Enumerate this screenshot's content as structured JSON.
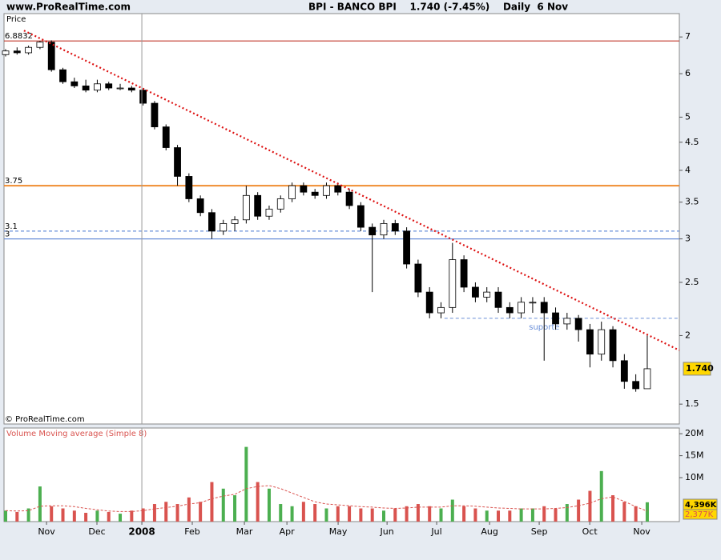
{
  "header": {
    "site": "www.ProRealTime.com",
    "title": "BPI - BANCO BPI    1.740 (-7.45%)    Daily  6 Nov"
  },
  "chart_data": [
    {
      "type": "candlestick",
      "axis_label": "Price",
      "copyright": "© ProRealTime.com",
      "log": true,
      "ylim": [
        1.38,
        7.72
      ],
      "yticks": [
        7,
        6,
        5,
        4.5,
        4,
        3.5,
        3,
        2.5,
        2,
        1.5
      ],
      "xlim": [
        -0.14,
        58.8
      ],
      "x": [
        0,
        1,
        2,
        3,
        4,
        5,
        6,
        7,
        8,
        9,
        10,
        11,
        12,
        13,
        14,
        15,
        16,
        17,
        18,
        19,
        20,
        21,
        22,
        23,
        24,
        25,
        26,
        27,
        28,
        29,
        30,
        31,
        32,
        33,
        34,
        35,
        36,
        37,
        38,
        39,
        40,
        41,
        42,
        43,
        44,
        45,
        46,
        47,
        48,
        49,
        50,
        51,
        52,
        53,
        54,
        55,
        56
      ],
      "open": [
        6.5,
        6.6,
        6.55,
        6.7,
        6.85,
        6.1,
        5.8,
        5.7,
        5.6,
        5.75,
        5.65,
        5.65,
        5.6,
        5.3,
        4.8,
        4.4,
        3.9,
        3.55,
        3.35,
        3.1,
        3.2,
        3.25,
        3.6,
        3.3,
        3.4,
        3.55,
        3.75,
        3.65,
        3.6,
        3.75,
        3.65,
        3.45,
        3.15,
        3.05,
        3.2,
        3.1,
        2.7,
        2.4,
        2.2,
        2.25,
        2.75,
        2.45,
        2.35,
        2.4,
        2.25,
        2.2,
        2.3,
        2.3,
        2.2,
        2.1,
        2.15,
        2.05,
        1.85,
        2.05,
        1.8,
        1.65,
        1.6
      ],
      "high": [
        6.65,
        6.7,
        6.75,
        6.88,
        6.9,
        6.15,
        5.9,
        5.85,
        5.85,
        5.8,
        5.75,
        5.7,
        5.65,
        5.35,
        4.85,
        4.45,
        3.95,
        3.6,
        3.4,
        3.25,
        3.3,
        3.75,
        3.65,
        3.45,
        3.6,
        3.8,
        3.8,
        3.7,
        3.8,
        3.8,
        3.7,
        3.5,
        3.2,
        3.25,
        3.25,
        3.15,
        2.75,
        2.45,
        2.3,
        2.95,
        2.8,
        2.5,
        2.45,
        2.45,
        2.3,
        2.35,
        2.35,
        2.35,
        2.25,
        2.2,
        2.18,
        2.1,
        2.12,
        2.08,
        1.85,
        1.7,
        2.0
      ],
      "low": [
        6.45,
        6.5,
        6.5,
        6.65,
        6.05,
        5.75,
        5.65,
        5.55,
        5.55,
        5.6,
        5.6,
        5.55,
        5.25,
        4.75,
        4.35,
        3.75,
        3.5,
        3.3,
        3.0,
        3.05,
        3.1,
        3.2,
        3.25,
        3.25,
        3.35,
        3.5,
        3.6,
        3.55,
        3.55,
        3.6,
        3.4,
        3.1,
        2.4,
        3.0,
        3.05,
        2.65,
        2.35,
        2.15,
        2.15,
        2.2,
        2.4,
        2.3,
        2.3,
        2.2,
        2.15,
        2.15,
        2.2,
        1.8,
        2.05,
        2.05,
        1.95,
        1.75,
        1.8,
        1.75,
        1.6,
        1.58,
        1.6
      ],
      "close": [
        6.6,
        6.55,
        6.7,
        6.85,
        6.1,
        5.8,
        5.7,
        5.6,
        5.75,
        5.65,
        5.65,
        5.6,
        5.3,
        4.8,
        4.4,
        3.9,
        3.55,
        3.35,
        3.1,
        3.2,
        3.25,
        3.6,
        3.3,
        3.4,
        3.55,
        3.75,
        3.65,
        3.6,
        3.75,
        3.65,
        3.45,
        3.15,
        3.05,
        3.2,
        3.1,
        2.7,
        2.4,
        2.2,
        2.25,
        2.75,
        2.45,
        2.35,
        2.4,
        2.25,
        2.2,
        2.3,
        2.3,
        2.2,
        2.1,
        2.15,
        2.05,
        1.85,
        2.05,
        1.8,
        1.65,
        1.6,
        1.74
      ],
      "up_color": "#ffffff",
      "down_color": "#000000",
      "last_price": {
        "value": 1.74,
        "label": "1.740"
      },
      "hlines": [
        {
          "value": 6.8832,
          "label": "6.8832",
          "color": "#c0392b",
          "dashed": false
        },
        {
          "value": 3.75,
          "label": "3.75",
          "color": "#f08c30",
          "dashed": false
        },
        {
          "value": 3.1,
          "label": "3.1",
          "color": "#6a8fd8",
          "dashed": true
        },
        {
          "value": 3,
          "label": "3",
          "color": "#6a8fd8",
          "dashed": false
        }
      ],
      "support": {
        "label": "suporte",
        "value": 2.15,
        "x": [
          38.3,
          58.8
        ],
        "color": "#6a8fd8"
      },
      "trendline": {
        "x": [
          1.6,
          58.8
        ],
        "y": [
          7.19,
          1.88
        ],
        "color": "#dd1111"
      }
    },
    {
      "type": "volume",
      "title": "Volume Moving average (Simple 8)",
      "ylim": [
        0,
        21.3
      ],
      "yticks": [
        {
          "value": 20,
          "label": "20M"
        },
        {
          "value": 15,
          "label": "15M"
        },
        {
          "value": 10,
          "label": "10M"
        }
      ],
      "xlim": [
        -0.14,
        58.8
      ],
      "xticks": [
        {
          "value": 3.57,
          "label": "Nov"
        },
        {
          "value": 7.97,
          "label": "Dec"
        },
        {
          "value": 11.89,
          "label": "2008"
        },
        {
          "value": 16.29,
          "label": "Feb"
        },
        {
          "value": 20.84,
          "label": "Mar"
        },
        {
          "value": 24.55,
          "label": "Apr"
        },
        {
          "value": 29.02,
          "label": "May"
        },
        {
          "value": 33.29,
          "label": "Jun"
        },
        {
          "value": 37.62,
          "label": "Jul"
        },
        {
          "value": 42.24,
          "label": "Aug"
        },
        {
          "value": 46.57,
          "label": "Sep"
        },
        {
          "value": 50.98,
          "label": "Oct"
        },
        {
          "value": 55.52,
          "label": "Nov"
        }
      ],
      "values": [
        2.5,
        2.2,
        3.0,
        8.0,
        3.5,
        3.0,
        2.5,
        2.0,
        2.5,
        2.2,
        1.8,
        2.5,
        3.0,
        4.0,
        4.5,
        4.0,
        5.5,
        4.5,
        9.0,
        7.5,
        6.0,
        17.0,
        9.0,
        7.5,
        4.0,
        3.5,
        4.5,
        4.0,
        3.0,
        3.5,
        3.5,
        3.0,
        3.0,
        2.5,
        3.0,
        3.5,
        4.0,
        3.5,
        3.0,
        5.0,
        3.5,
        3.0,
        2.5,
        2.5,
        2.5,
        3.0,
        3.0,
        3.5,
        3.0,
        4.0,
        5.0,
        7.0,
        11.5,
        6.0,
        4.5,
        3.5,
        4.396
      ],
      "last_label": "4,396K",
      "up_color": "#4caf50",
      "down_color": "#d9534f",
      "ma": {
        "color": "#d9534f",
        "values": [
          2.5,
          2.4,
          2.5,
          3.5,
          3.6,
          3.6,
          3.4,
          3.0,
          2.7,
          2.4,
          2.3,
          2.3,
          2.5,
          2.9,
          3.2,
          3.5,
          4.0,
          4.3,
          5.2,
          5.8,
          6.2,
          7.5,
          8.0,
          8.2,
          7.5,
          6.5,
          5.5,
          4.5,
          4.0,
          3.8,
          3.6,
          3.4,
          3.3,
          3.1,
          3.0,
          3.1,
          3.3,
          3.3,
          3.3,
          3.6,
          3.6,
          3.5,
          3.3,
          3.1,
          3.0,
          2.9,
          2.9,
          2.9,
          3.0,
          3.2,
          3.6,
          4.2,
          5.2,
          5.6,
          4.6,
          3.4,
          2.377
        ],
        "last_label": "2,377K"
      }
    }
  ]
}
